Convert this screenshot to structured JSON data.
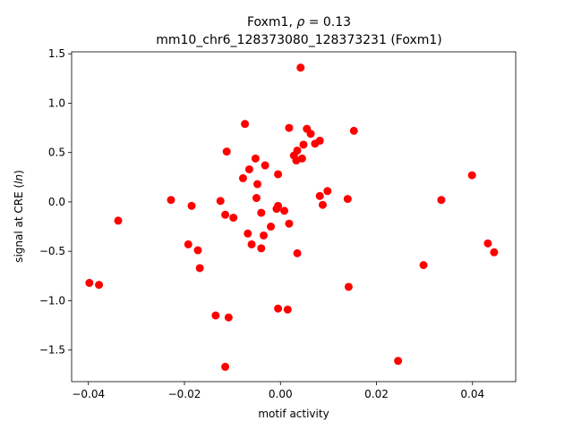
{
  "chart_data": {
    "type": "scatter",
    "title_line1_prefix": "Foxm1, ",
    "title_line1_rho": "ρ",
    "title_line1_suffix": " = 0.13",
    "title_line2": "mm10_chr6_128373080_128373231 (Foxm1)",
    "xlabel": "motif activity",
    "ylabel_prefix": "signal at CRE (",
    "ylabel_italic": "ln",
    "ylabel_suffix": ")",
    "xlim": [
      -0.0435,
      0.049
    ],
    "ylim": [
      -1.82,
      1.52
    ],
    "xticks": [
      -0.04,
      -0.02,
      0.0,
      0.02,
      0.04
    ],
    "xtick_labels": [
      "−0.04",
      "−0.02",
      "0.00",
      "0.02",
      "0.04"
    ],
    "yticks": [
      -1.5,
      -1.0,
      -0.5,
      0.0,
      0.5,
      1.0,
      1.5
    ],
    "ytick_labels": [
      "−1.5",
      "−1.0",
      "−0.5",
      "0.0",
      "0.5",
      "1.0",
      "1.5"
    ],
    "marker_color": "#ff0000",
    "grid": false,
    "points": [
      {
        "x": 0.0042,
        "y": 1.36
      },
      {
        "x": -0.0074,
        "y": 0.79
      },
      {
        "x": 0.0018,
        "y": 0.75
      },
      {
        "x": 0.0055,
        "y": 0.74
      },
      {
        "x": 0.0153,
        "y": 0.72
      },
      {
        "x": 0.0063,
        "y": 0.69
      },
      {
        "x": 0.0082,
        "y": 0.62
      },
      {
        "x": 0.0072,
        "y": 0.59
      },
      {
        "x": 0.0048,
        "y": 0.58
      },
      {
        "x": 0.0035,
        "y": 0.52
      },
      {
        "x": -0.0112,
        "y": 0.51
      },
      {
        "x": 0.0028,
        "y": 0.47
      },
      {
        "x": -0.0052,
        "y": 0.44
      },
      {
        "x": 0.0045,
        "y": 0.44
      },
      {
        "x": 0.0033,
        "y": 0.42
      },
      {
        "x": -0.0032,
        "y": 0.37
      },
      {
        "x": -0.0065,
        "y": 0.33
      },
      {
        "x": -0.0005,
        "y": 0.28
      },
      {
        "x": 0.0399,
        "y": 0.27
      },
      {
        "x": -0.0078,
        "y": 0.24
      },
      {
        "x": -0.0048,
        "y": 0.18
      },
      {
        "x": 0.0098,
        "y": 0.11
      },
      {
        "x": 0.0082,
        "y": 0.06
      },
      {
        "x": -0.005,
        "y": 0.04
      },
      {
        "x": 0.014,
        "y": 0.03
      },
      {
        "x": 0.0335,
        "y": 0.02
      },
      {
        "x": -0.0228,
        "y": 0.02
      },
      {
        "x": -0.0125,
        "y": 0.01
      },
      {
        "x": -0.0185,
        "y": -0.04
      },
      {
        "x": 0.0088,
        "y": -0.03
      },
      {
        "x": -0.0005,
        "y": -0.04
      },
      {
        "x": -0.0008,
        "y": -0.07
      },
      {
        "x": 0.0008,
        "y": -0.09
      },
      {
        "x": -0.004,
        "y": -0.11
      },
      {
        "x": -0.0115,
        "y": -0.13
      },
      {
        "x": -0.0098,
        "y": -0.16
      },
      {
        "x": -0.0338,
        "y": -0.19
      },
      {
        "x": 0.0018,
        "y": -0.22
      },
      {
        "x": -0.002,
        "y": -0.25
      },
      {
        "x": -0.0068,
        "y": -0.32
      },
      {
        "x": -0.0035,
        "y": -0.34
      },
      {
        "x": -0.0192,
        "y": -0.43
      },
      {
        "x": -0.006,
        "y": -0.43
      },
      {
        "x": 0.0432,
        "y": -0.42
      },
      {
        "x": -0.004,
        "y": -0.47
      },
      {
        "x": -0.0172,
        "y": -0.49
      },
      {
        "x": 0.0445,
        "y": -0.51
      },
      {
        "x": 0.0035,
        "y": -0.52
      },
      {
        "x": 0.0298,
        "y": -0.64
      },
      {
        "x": -0.0168,
        "y": -0.67
      },
      {
        "x": -0.0398,
        "y": -0.82
      },
      {
        "x": -0.0378,
        "y": -0.84
      },
      {
        "x": 0.0142,
        "y": -0.86
      },
      {
        "x": -0.0005,
        "y": -1.08
      },
      {
        "x": 0.0015,
        "y": -1.09
      },
      {
        "x": -0.0135,
        "y": -1.15
      },
      {
        "x": -0.0108,
        "y": -1.17
      },
      {
        "x": 0.0245,
        "y": -1.61
      },
      {
        "x": -0.0115,
        "y": -1.67
      }
    ]
  }
}
